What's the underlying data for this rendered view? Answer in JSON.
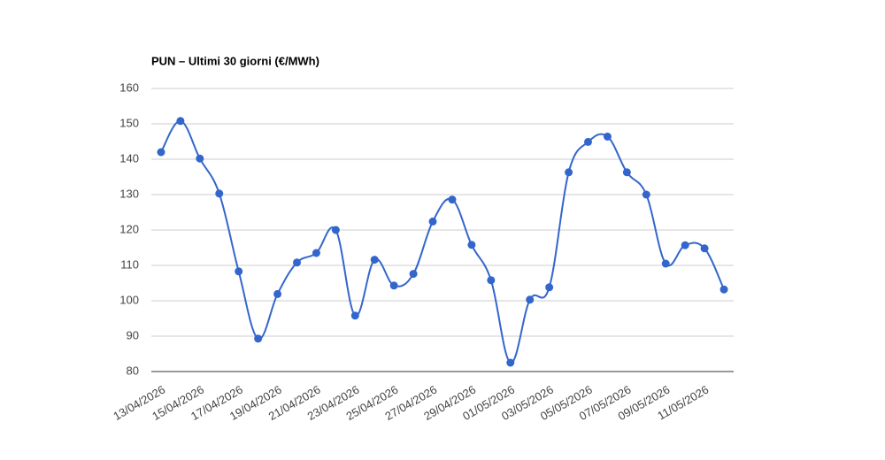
{
  "chart_data": {
    "type": "line",
    "title": "PUN – Ultimi 30 giorni (€/MWh)",
    "categories": [
      "13/04/2026",
      null,
      "15/04/2026",
      null,
      "17/04/2026",
      null,
      "19/04/2026",
      null,
      "21/04/2026",
      null,
      "23/04/2026",
      null,
      "25/04/2026",
      null,
      "27/04/2026",
      null,
      "29/04/2026",
      null,
      "01/05/2026",
      null,
      "03/05/2026",
      null,
      "05/05/2026",
      null,
      "07/05/2026",
      null,
      "09/05/2026",
      null,
      "11/05/2026",
      null
    ],
    "series": [
      {
        "color": "#3366cc",
        "values": [
          142,
          150.8,
          140.2,
          130.3,
          108.3,
          89.3,
          101.9,
          110.8,
          113.5,
          120,
          95.8,
          111.6,
          104.3,
          107.6,
          122.4,
          128.6,
          115.8,
          105.8,
          82.5,
          100.3,
          103.8,
          136.3,
          144.9,
          146.4,
          136.3,
          130,
          110.5,
          115.7,
          114.8,
          103.2
        ]
      }
    ],
    "ylim": [
      80,
      160
    ],
    "yticks": [
      80,
      90,
      100,
      110,
      120,
      130,
      140,
      150,
      160
    ],
    "grid": true
  }
}
